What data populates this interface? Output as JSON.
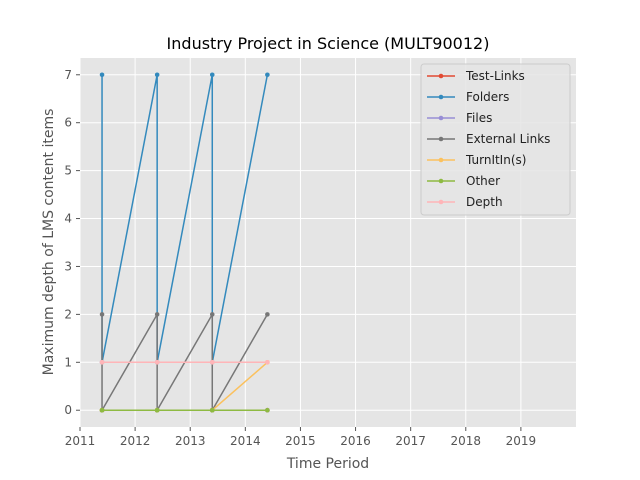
{
  "chart_data": {
    "type": "line",
    "title": "Industry Project in Science (MULT90012)",
    "xlabel": "Time Period",
    "ylabel": "Maximum depth of LMS content items",
    "xlim": [
      2011,
      2020
    ],
    "ylim": [
      -0.35,
      7.35
    ],
    "xticks": [
      2011,
      2012,
      2013,
      2014,
      2015,
      2016,
      2017,
      2018,
      2019
    ],
    "yticks": [
      0,
      1,
      2,
      3,
      4,
      5,
      6,
      7
    ],
    "grid": true,
    "legend_position": "top-right",
    "x": [
      2011.4,
      2011.4,
      2012.4,
      2012.4,
      2013.4,
      2013.4,
      2014.4
    ],
    "series": [
      {
        "name": "Test-Links",
        "color": "#E24A33",
        "values": [
          0,
          0,
          0,
          0,
          0,
          0,
          0
        ]
      },
      {
        "name": "Folders",
        "color": "#348ABD",
        "values": [
          7,
          1,
          7,
          1,
          7,
          1,
          7
        ]
      },
      {
        "name": "Files",
        "color": "#988ED5",
        "values": [
          0,
          0,
          0,
          0,
          0,
          0,
          0
        ]
      },
      {
        "name": "External Links",
        "color": "#777777",
        "values": [
          2,
          0,
          2,
          0,
          2,
          0,
          2
        ]
      },
      {
        "name": "TurnItIn(s)",
        "color": "#FBC15E",
        "values": [
          0,
          0,
          0,
          0,
          0,
          0,
          1
        ]
      },
      {
        "name": "Other",
        "color": "#8EBA42",
        "values": [
          0,
          0,
          0,
          0,
          0,
          0,
          0
        ]
      },
      {
        "name": "Depth",
        "color": "#FFB5B8",
        "values": [
          1,
          1,
          1,
          1,
          1,
          1,
          1
        ]
      }
    ]
  }
}
